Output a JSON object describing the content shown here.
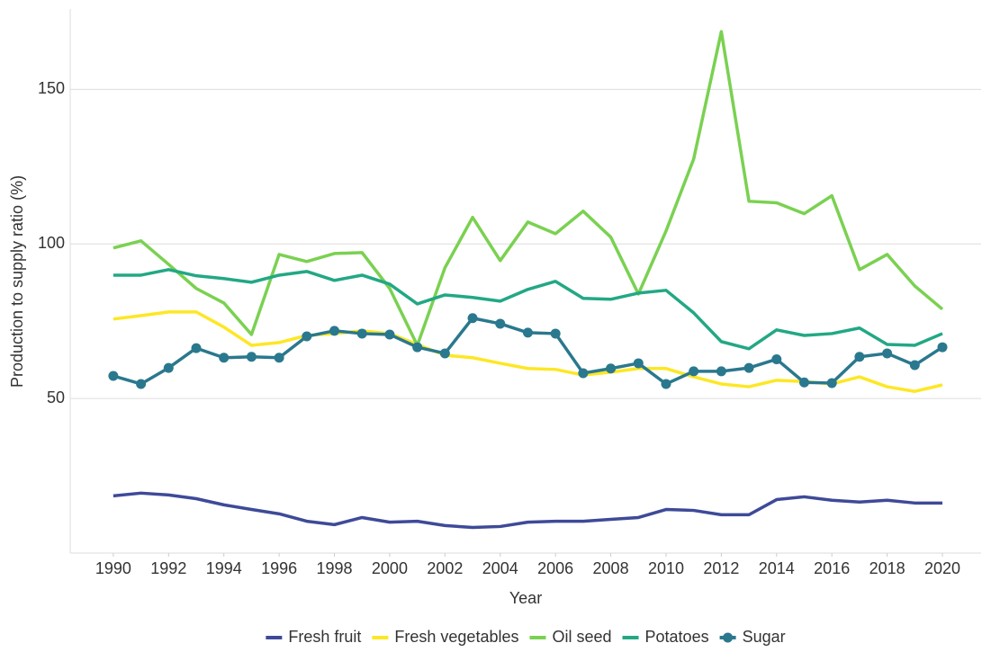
{
  "chart_data": {
    "type": "line",
    "x_label": "Year",
    "y_label": "Production to supply ratio (%)",
    "x": [
      1990,
      1991,
      1992,
      1993,
      1994,
      1995,
      1996,
      1997,
      1998,
      1999,
      2000,
      2001,
      2002,
      2003,
      2004,
      2005,
      2006,
      2007,
      2008,
      2009,
      2010,
      2011,
      2012,
      2013,
      2014,
      2015,
      2016,
      2017,
      2018,
      2019,
      2020
    ],
    "xlim": [
      1988.44,
      2021.4
    ],
    "xticks": [
      1990,
      1992,
      1994,
      1996,
      1998,
      2000,
      2002,
      2004,
      2006,
      2008,
      2010,
      2012,
      2014,
      2016,
      2018,
      2020
    ],
    "ylim": [
      0,
      176
    ],
    "yticks": [
      50,
      100,
      150
    ],
    "grid": true,
    "legend": "bottom",
    "series": [
      {
        "name": "Fresh fruit",
        "color": "#3e4a98",
        "values": [
          18.5,
          19.4,
          18.8,
          17.6,
          15.6,
          14.1,
          12.7,
          10.3,
          9.2,
          11.5,
          10.0,
          10.3,
          8.9,
          8.3,
          8.6,
          10.0,
          10.3,
          10.3,
          10.9,
          11.5,
          14.1,
          13.8,
          12.4,
          12.4,
          17.3,
          18.2,
          17.1,
          16.5,
          17.1,
          16.2,
          16.2
        ]
      },
      {
        "name": "Fresh vegetables",
        "color": "#fde725",
        "values": [
          75.7,
          76.8,
          78.0,
          78.0,
          73.1,
          67.2,
          68.1,
          70.4,
          71.0,
          71.9,
          71.0,
          67.5,
          64.0,
          63.2,
          61.4,
          59.7,
          59.4,
          57.6,
          58.5,
          59.7,
          59.7,
          57.0,
          54.7,
          53.8,
          55.9,
          55.5,
          54.7,
          57.0,
          53.8,
          52.3,
          54.4
        ]
      },
      {
        "name": "Oil seed",
        "color": "#7ad151",
        "values": [
          98.7,
          101.0,
          93.4,
          85.6,
          80.9,
          70.7,
          96.6,
          94.3,
          96.9,
          97.2,
          85.6,
          67.2,
          92.3,
          108.6,
          94.6,
          107.1,
          103.3,
          110.6,
          102.2,
          83.8,
          104.2,
          127.5,
          168.7,
          113.8,
          113.3,
          109.8,
          115.6,
          91.7,
          96.6,
          86.4,
          78.9
        ]
      },
      {
        "name": "Potatoes",
        "color": "#22a884",
        "values": [
          89.9,
          89.9,
          91.7,
          89.7,
          88.8,
          87.6,
          89.9,
          91.1,
          88.2,
          89.9,
          87.0,
          80.6,
          83.5,
          82.7,
          81.5,
          85.3,
          87.9,
          82.4,
          82.1,
          84.1,
          85.0,
          77.7,
          68.4,
          66.1,
          72.2,
          70.4,
          71.0,
          72.8,
          67.5,
          67.2,
          71.0
        ]
      },
      {
        "name": "Sugar",
        "color": "#2a788e",
        "marker": true,
        "values": [
          57.3,
          54.7,
          59.9,
          66.3,
          63.2,
          63.5,
          63.2,
          70.1,
          71.9,
          71.0,
          70.7,
          66.6,
          64.6,
          76.0,
          74.2,
          71.3,
          71.0,
          58.2,
          59.7,
          61.4,
          54.7,
          58.8,
          58.8,
          59.9,
          62.7,
          55.2,
          55.0,
          63.5,
          64.6,
          60.8,
          66.6
        ]
      }
    ]
  }
}
